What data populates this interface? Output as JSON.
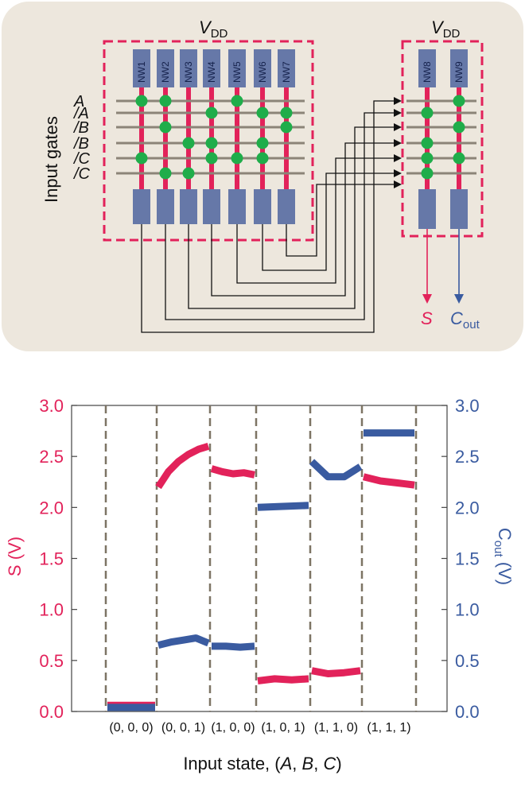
{
  "circuit": {
    "vdd_left": {
      "main": "V",
      "sub": "DD"
    },
    "vdd_right": {
      "main": "V",
      "sub": "DD"
    },
    "input_gates_label": "Input gates",
    "gate_labels": [
      "A",
      "/A",
      "/B",
      "/B",
      "/C",
      "/C"
    ],
    "left_nanowires": [
      "NW1",
      "NW2",
      "NW3",
      "NW4",
      "NW5",
      "NW6",
      "NW7"
    ],
    "right_nanowires": [
      "NW8",
      "NW9"
    ],
    "output_s": "S",
    "output_cout": {
      "main": "C",
      "sub": "out"
    },
    "colors": {
      "panel_bg": "#ede7dd",
      "dashed_box": "#e2225a",
      "nanowire_block": "#6678a8",
      "nanowire_wire": "#e2225a",
      "gate_line": "#8c8478",
      "node": "#1fad4a",
      "s_color": "#e2225a",
      "cout_color": "#3a5ba0"
    }
  },
  "chart_data": {
    "type": "line",
    "xlabel": {
      "prefix": "Input state, (",
      "A": "A",
      "B": "B",
      "C": "C",
      "suffix": ")"
    },
    "ylabel_left": "S (V)",
    "ylabel_right": {
      "main": "C",
      "sub": "out",
      "unit": " (V)"
    },
    "ylim": [
      0,
      3.0
    ],
    "yticks": [
      "0.0",
      "0.5",
      "1.0",
      "1.5",
      "2.0",
      "2.5",
      "3.0"
    ],
    "categories": [
      "(0, 0, 0)",
      "(0, 0, 1)",
      "(1, 0, 0)",
      "(1, 0, 1)",
      "(1, 1, 0)",
      "(1, 1, 1)"
    ],
    "series": [
      {
        "name": "S",
        "color": "#e2225a",
        "segments": [
          [
            0.06,
            0.06
          ],
          [
            2.2,
            2.35,
            2.45,
            2.52,
            2.57,
            2.6
          ],
          [
            2.38,
            2.35,
            2.33,
            2.34,
            2.32
          ],
          [
            0.3,
            0.32,
            0.31,
            0.32
          ],
          [
            0.4,
            0.37,
            0.38,
            0.4
          ],
          [
            2.3,
            2.26,
            2.24,
            2.22
          ]
        ]
      },
      {
        "name": "Cout",
        "color": "#3a5ba0",
        "segments": [
          [
            0.04,
            0.04
          ],
          [
            0.65,
            0.68,
            0.7,
            0.72,
            0.67
          ],
          [
            0.64,
            0.64,
            0.63,
            0.64
          ],
          [
            2.0,
            2.01,
            2.02
          ],
          [
            2.45,
            2.3,
            2.3,
            2.4
          ],
          [
            2.73,
            2.73
          ]
        ]
      }
    ]
  }
}
